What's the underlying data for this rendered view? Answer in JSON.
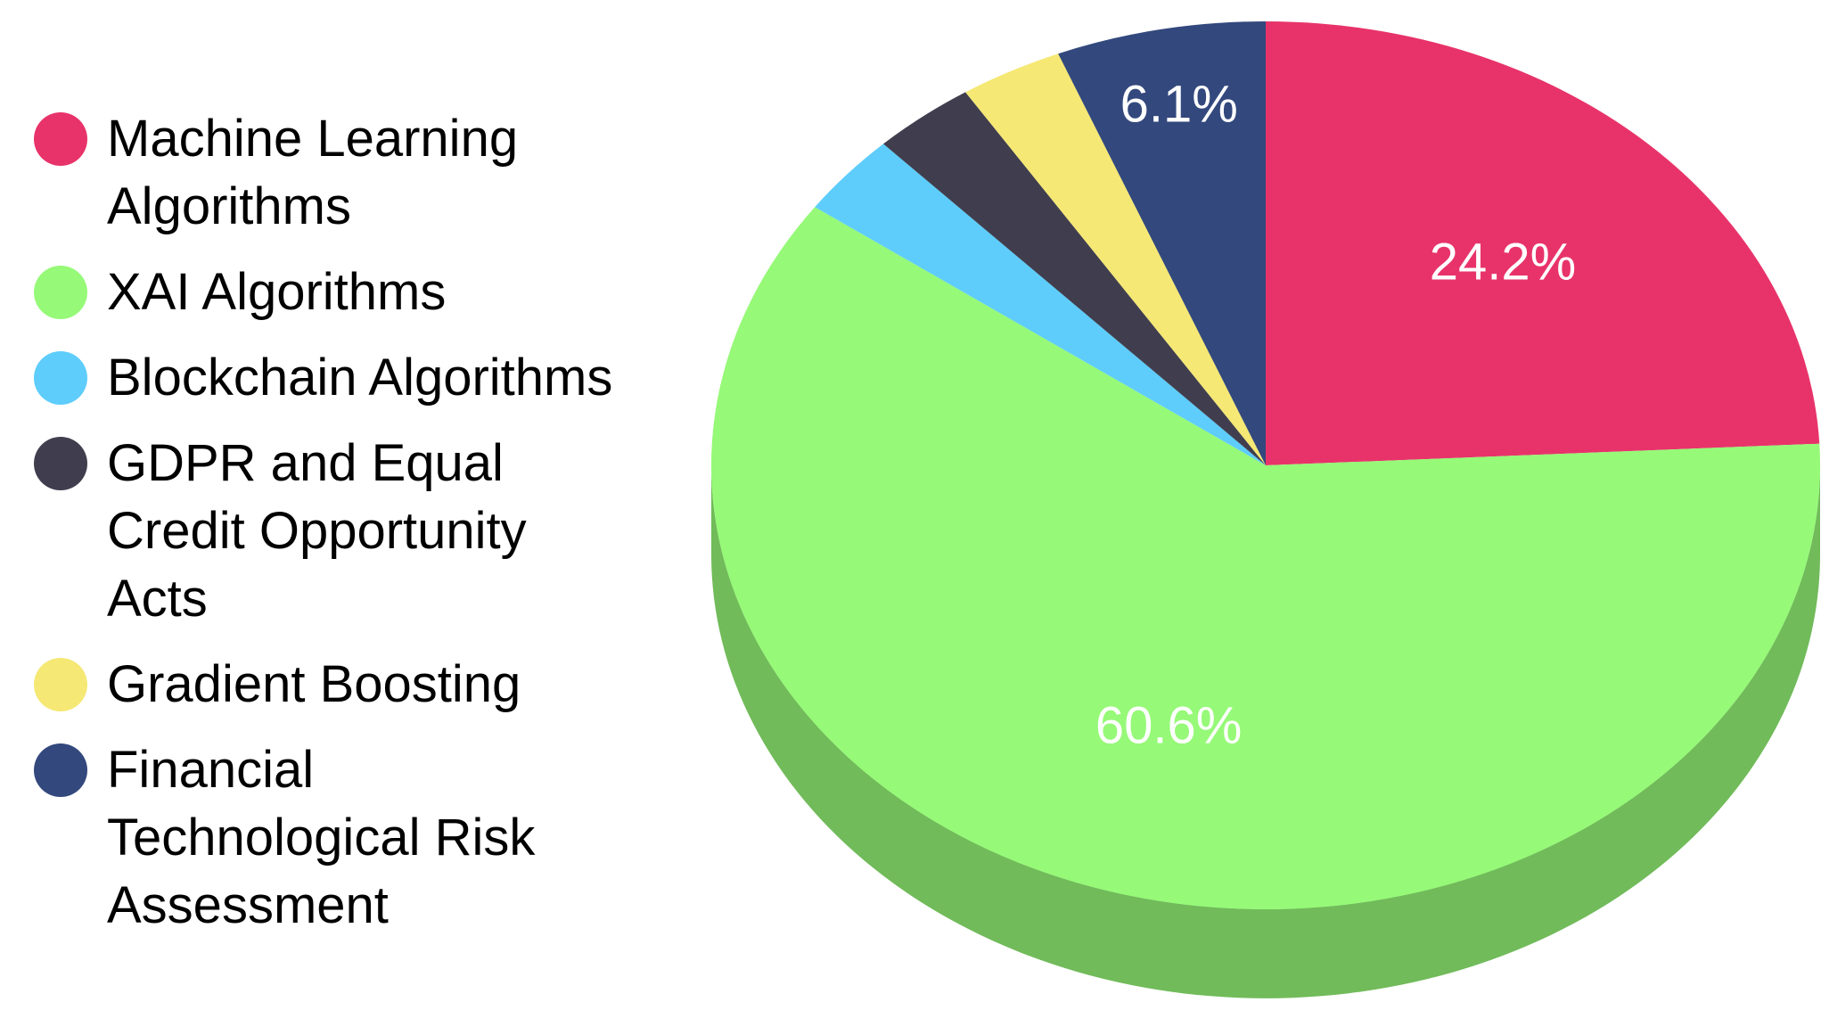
{
  "chart_data": {
    "type": "pie",
    "style": "3d",
    "categories": [
      "Machine Learning Algorithms",
      "XAI Algorithms",
      "Blockchain Algorithms",
      "GDPR and Equal Credit Opportunity Acts",
      "Gradient Boosting",
      "Financial Technological Risk Assessment"
    ],
    "values": [
      24.2,
      60.6,
      3.0,
      3.0,
      3.0,
      6.1
    ],
    "colors": [
      "#E8336A",
      "#96F978",
      "#5ECDFB",
      "#403E4E",
      "#F5E874",
      "#33487D"
    ],
    "slice_labels": [
      "24.2%",
      "60.6%",
      "",
      "",
      "",
      "6.1%"
    ],
    "legend": {
      "placement": "left",
      "entries": [
        {
          "label": "Machine Learning Algorithms",
          "color": "#E8336A"
        },
        {
          "label": "XAI Algorithms",
          "color": "#96F978"
        },
        {
          "label": "Blockchain Algorithms",
          "color": "#5ECDFB"
        },
        {
          "label": "GDPR and Equal Credit Opportunity Acts",
          "color": "#403E4E"
        },
        {
          "label": "Gradient Boosting",
          "color": "#F5E874"
        },
        {
          "label": "Financial Technological Risk Assessment",
          "color": "#33487D"
        }
      ]
    }
  }
}
